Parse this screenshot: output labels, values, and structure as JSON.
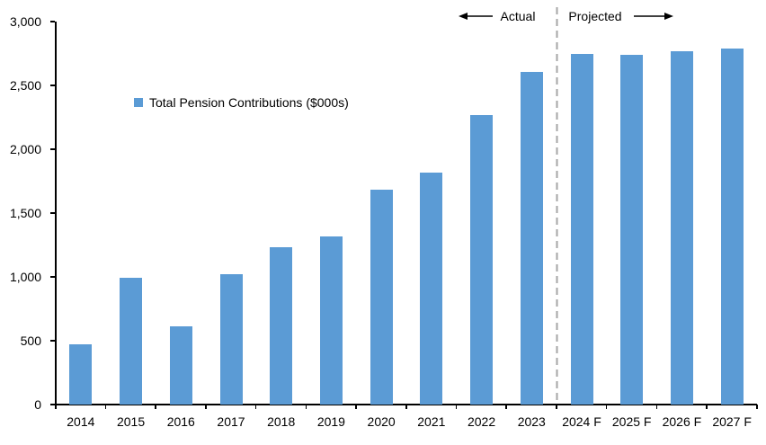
{
  "chart_data": {
    "type": "bar",
    "title": "",
    "legend": "Total Pension Contributions ($000s)",
    "categories": [
      "2014",
      "2015",
      "2016",
      "2017",
      "2018",
      "2019",
      "2020",
      "2021",
      "2022",
      "2023",
      "2024 F",
      "2025 F",
      "2026 F",
      "2027 F"
    ],
    "values": [
      470,
      990,
      610,
      1020,
      1230,
      1320,
      1685,
      1815,
      2270,
      2605,
      2750,
      2740,
      2765,
      2790
    ],
    "xlabel": "",
    "ylabel": "",
    "ylim": [
      0,
      3000
    ],
    "ytick_step": 500,
    "grid": false,
    "legend_position": "inside-upper-left",
    "bar_color": "#5B9BD5",
    "axis_color": "#000000",
    "divider_after_index": 9,
    "divider_color": "#A6A6A6",
    "annotations": {
      "actual_label": "Actual",
      "projected_label": "Projected"
    }
  }
}
